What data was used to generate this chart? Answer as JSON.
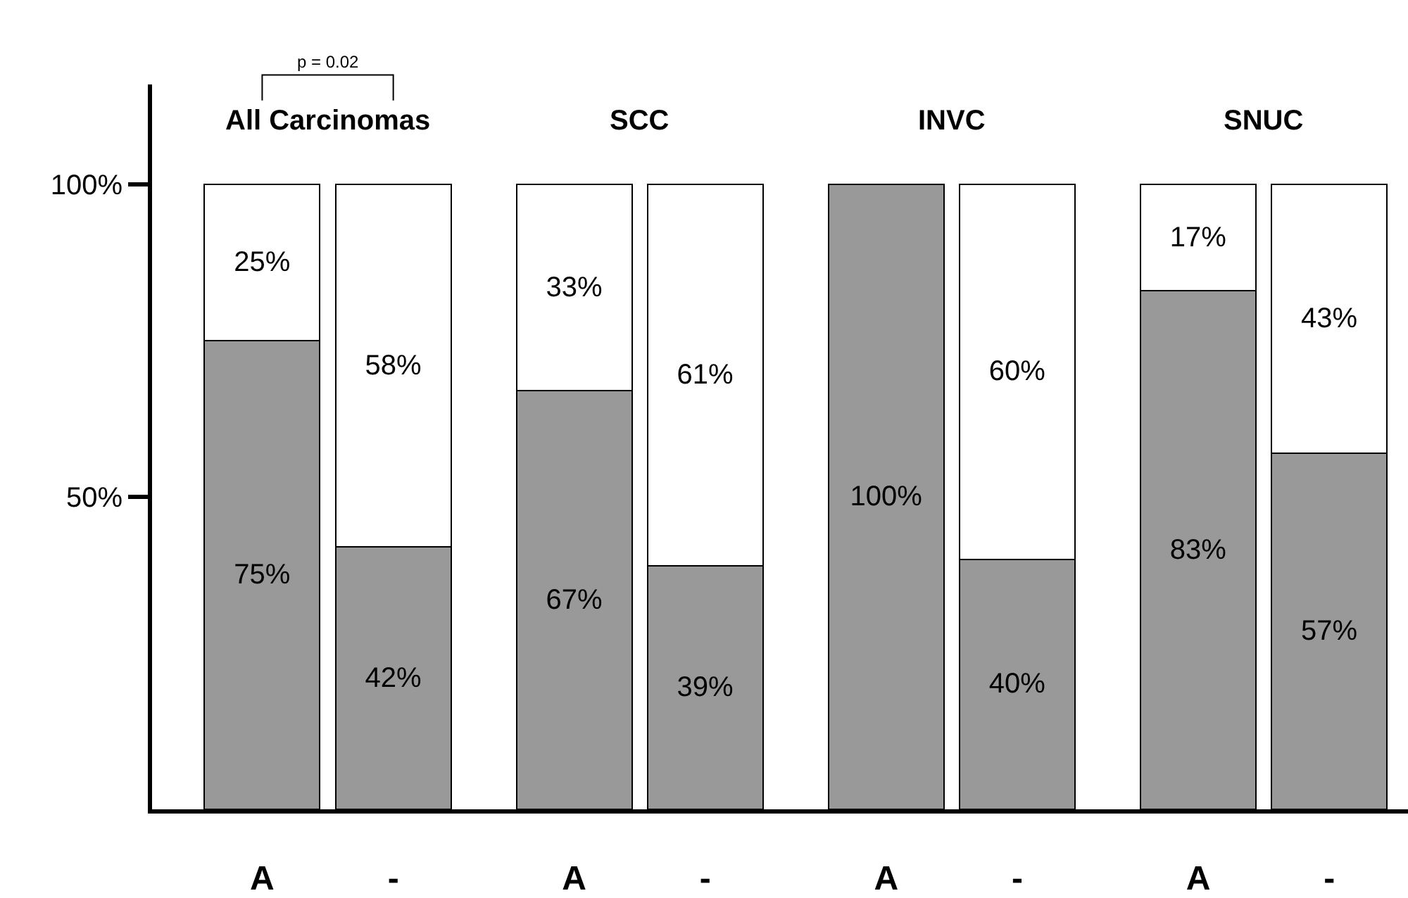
{
  "chart_data": {
    "type": "bar",
    "stacked": true,
    "categories": [
      "A",
      "-",
      "A",
      "-",
      "A",
      "-",
      "A",
      "-"
    ],
    "series": [
      {
        "color": "#999999",
        "values": [
          75,
          42,
          67,
          39,
          100,
          40,
          83,
          57
        ],
        "value_labels": [
          "75%",
          "42%",
          "67%",
          "39%",
          "100%",
          "40%",
          "83%",
          "57%"
        ]
      },
      {
        "color": "#ffffff",
        "values": [
          25,
          58,
          33,
          61,
          null,
          60,
          17,
          43
        ],
        "value_labels": [
          "25%",
          "58%",
          "33%",
          "61%",
          null,
          "60%",
          "17%",
          "43%"
        ]
      }
    ],
    "ylim": [
      0,
      116
    ],
    "yticks": [
      {
        "value": 50,
        "label": "50%"
      },
      {
        "value": 100,
        "label": "100%"
      }
    ],
    "annotations": [
      "p = 0.02",
      "All Carcinomas",
      "SCC",
      "INVC",
      "SNUC"
    ]
  }
}
